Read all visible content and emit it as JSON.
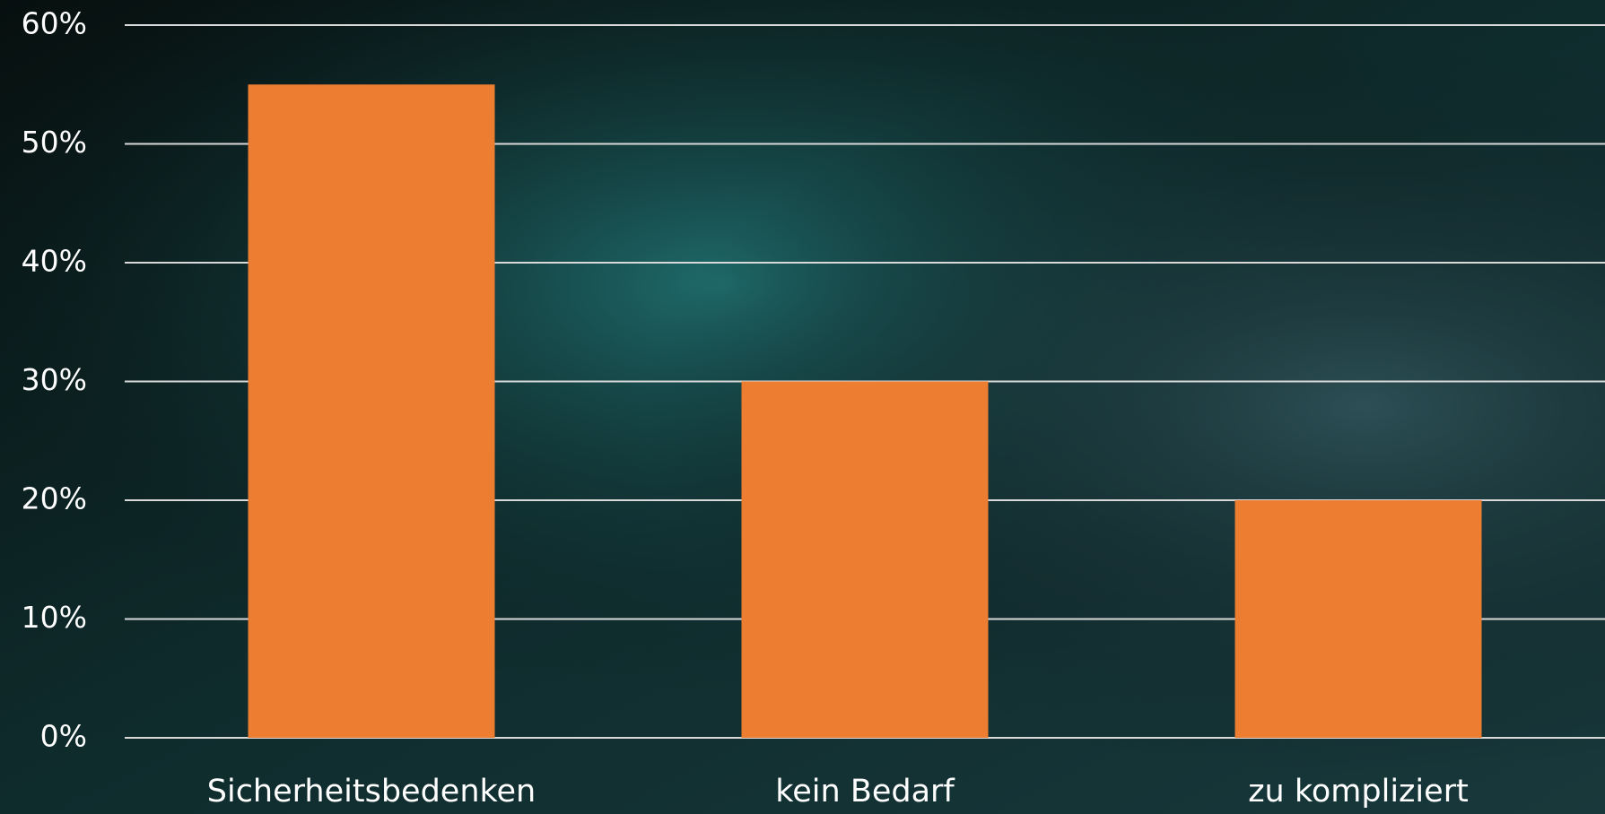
{
  "chart_data": {
    "type": "bar",
    "categories": [
      "Sicherheitsbedenken",
      "kein Bedarf",
      "zu kompliziert"
    ],
    "values": [
      55,
      30,
      20
    ],
    "color": "#ed7d31",
    "ylim": [
      0,
      60
    ],
    "yticks": [
      {
        "value": 0,
        "label": "0%"
      },
      {
        "value": 10,
        "label": "10%"
      },
      {
        "value": 20,
        "label": "20%"
      },
      {
        "value": 30,
        "label": "30%"
      },
      {
        "value": 40,
        "label": "40%"
      },
      {
        "value": 50,
        "label": "50%"
      },
      {
        "value": 60,
        "label": "60%"
      }
    ],
    "grid": true
  }
}
